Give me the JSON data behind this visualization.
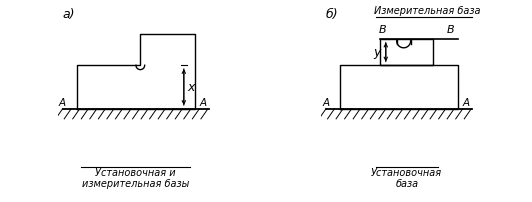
{
  "bg_color": "#ffffff",
  "line_color": "#000000",
  "fig_width": 5.32,
  "fig_height": 2.02,
  "dpi": 100,
  "label_a": "а)",
  "label_b": "б)",
  "text_a_base": "Установочная и\nизмерительная базы",
  "text_b_base": "Установочная\nбаза",
  "text_b_top": "Измерительная база",
  "label_A": "А",
  "label_B_left": "В",
  "label_B_right": "В",
  "label_x": "x",
  "label_y": "у"
}
